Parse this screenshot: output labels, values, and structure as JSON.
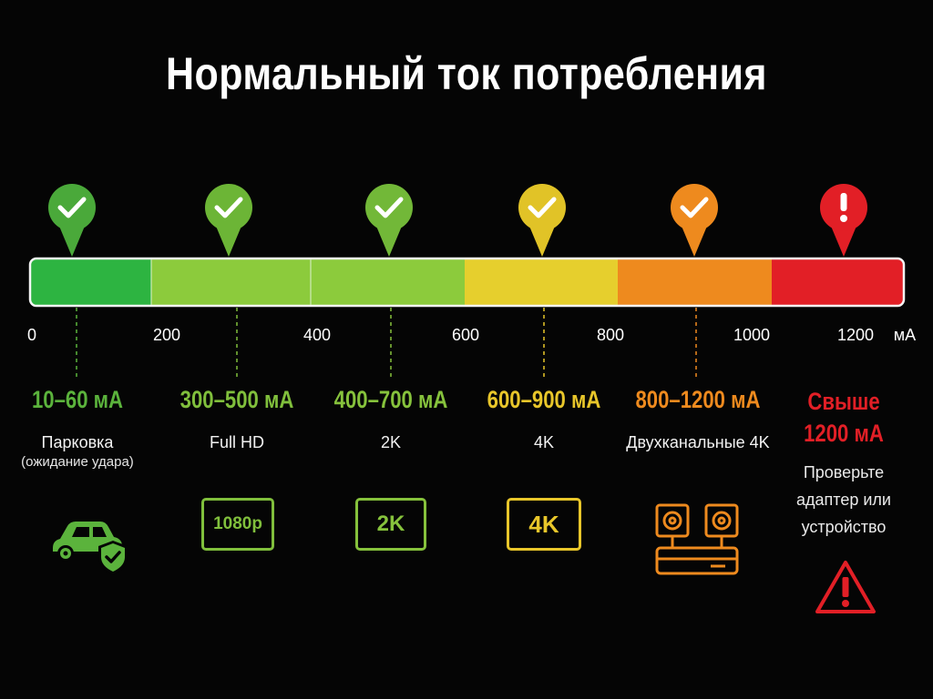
{
  "title": "Нормальный ток потребления",
  "scale": {
    "ticks": [
      "0",
      "200",
      "400",
      "600",
      "800",
      "1000",
      "1200"
    ],
    "unit": "мА",
    "segment_colors": [
      "#2db441",
      "#8ccb3c",
      "#8ccb3c",
      "#e6cf2d",
      "#ee8a1e",
      "#e21f26"
    ]
  },
  "markers": [
    {
      "icon": "check-icon",
      "color": "#4aa93a"
    },
    {
      "icon": "check-icon",
      "color": "#6cb536"
    },
    {
      "icon": "check-icon",
      "color": "#72b838"
    },
    {
      "icon": "check-icon",
      "color": "#e1c327"
    },
    {
      "icon": "check-icon",
      "color": "#ee8a1e"
    },
    {
      "icon": "exclamation-icon",
      "color": "#e21f26"
    }
  ],
  "columns": [
    {
      "range": "10–60 мА",
      "color": "#5bb33c",
      "label": "Парковка",
      "sublabel": "(ожидание удара)",
      "icon": "car-shield-icon"
    },
    {
      "range": "300–500 мА",
      "color": "#80bf3c",
      "label": "Full HD",
      "badge": "1080p"
    },
    {
      "range": "400–700 мА",
      "color": "#86c23c",
      "label": "2K",
      "badge": "2K"
    },
    {
      "range": "600–900 мА",
      "color": "#e8c62a",
      "label": "4K",
      "badge": "4K"
    },
    {
      "range": "800–1200 мА",
      "color": "#ee8a1e",
      "label": "Двухканальные 4K",
      "icon": "dual-camera-icon"
    },
    {
      "range_line1": "Свыше",
      "range_line2": "1200 мА",
      "color": "#e21f26",
      "note_line1": "Проверьте",
      "note_line2": "адаптер или",
      "note_line3": "устройство",
      "icon": "warning-icon"
    }
  ]
}
